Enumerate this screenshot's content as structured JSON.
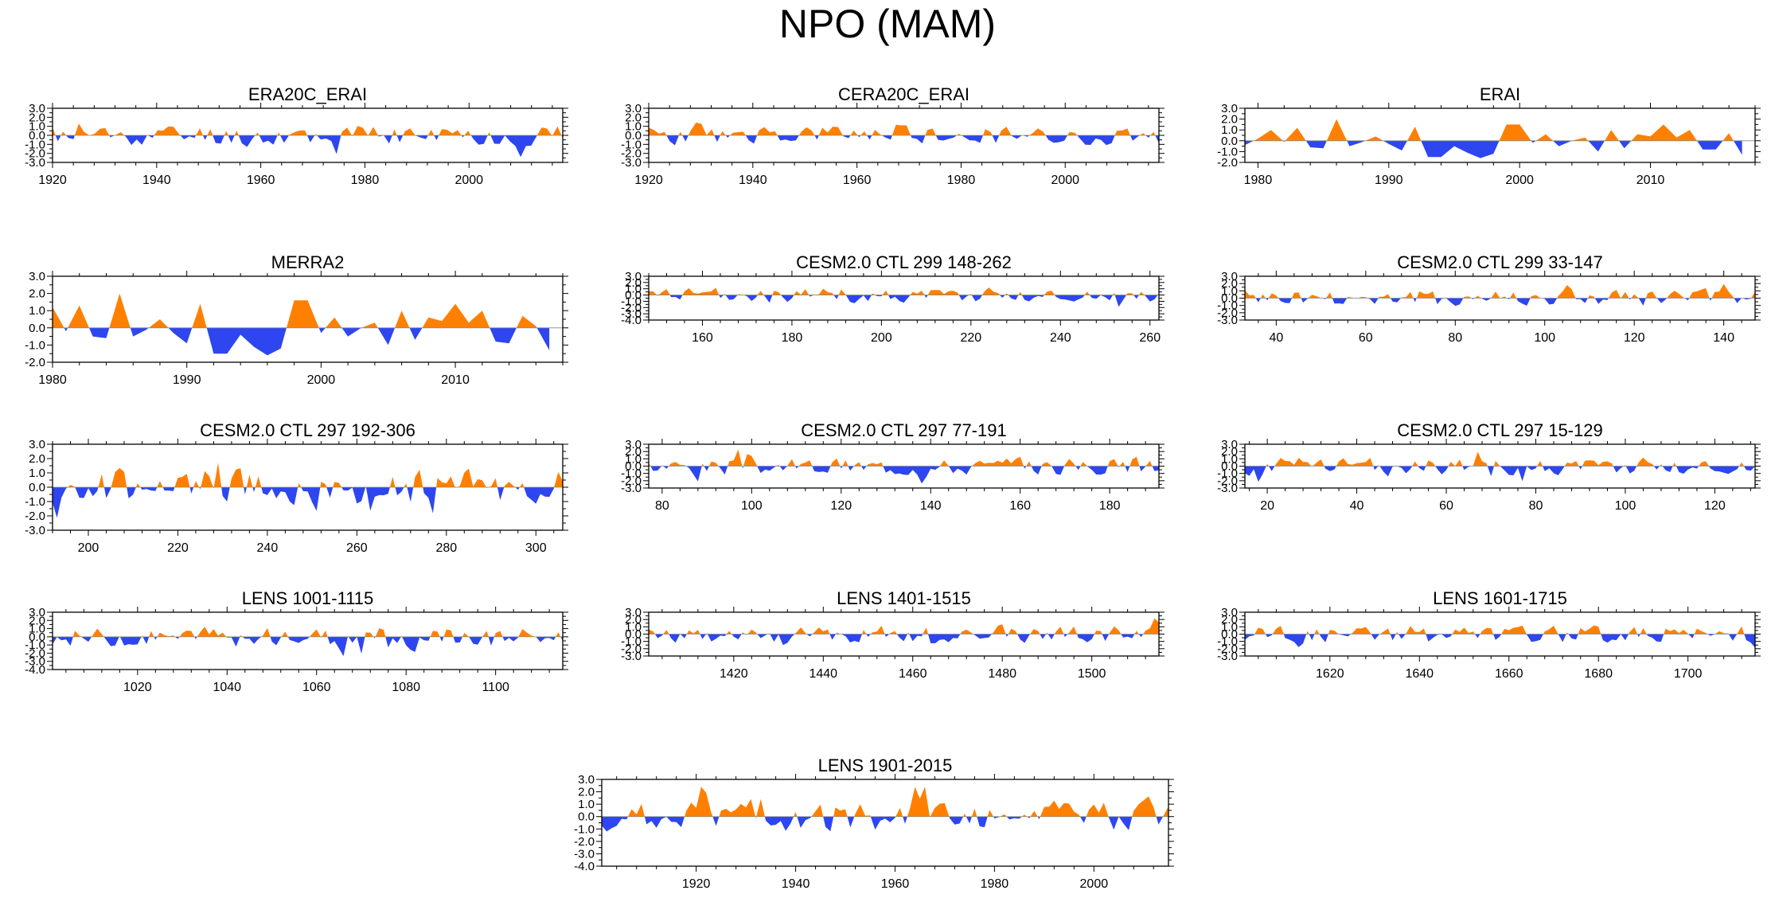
{
  "page": {
    "title": "NPO (MAM)"
  },
  "colors": {
    "positive": "#ff8000",
    "negative": "#2d46ef",
    "axis": "#000000"
  },
  "chart_data": [
    {
      "type": "area",
      "title": "ERA20C_ERAI",
      "xlim": [
        1920,
        2018
      ],
      "ylim": [
        -3.0,
        3.0
      ],
      "yticks": [
        3.0,
        2.0,
        1.0,
        0.0,
        -1.0,
        -2.0,
        -3.0
      ],
      "xticks": [
        1920,
        1940,
        1960,
        1980,
        2000
      ],
      "n": 98,
      "seed": 11,
      "amp": 1.0
    },
    {
      "type": "area",
      "title": "CERA20C_ERAI",
      "xlim": [
        1920,
        2018
      ],
      "ylim": [
        -3.0,
        3.0
      ],
      "yticks": [
        3.0,
        2.0,
        1.0,
        0.0,
        -1.0,
        -2.0,
        -3.0
      ],
      "xticks": [
        1920,
        1940,
        1960,
        1980,
        2000
      ],
      "n": 98,
      "seed": 23,
      "amp": 0.9
    },
    {
      "type": "area",
      "title": "ERAI",
      "xlim": [
        1979,
        2018
      ],
      "ylim": [
        -2.0,
        3.0
      ],
      "yticks": [
        3.0,
        2.0,
        1.0,
        0.0,
        -1.0,
        -2.0
      ],
      "xticks": [
        1980,
        1990,
        2000,
        2010
      ],
      "x": [
        1979,
        1980,
        1981,
        1982,
        1983,
        1984,
        1985,
        1986,
        1987,
        1988,
        1989,
        1990,
        1991,
        1992,
        1993,
        1994,
        1995,
        1996,
        1997,
        1998,
        1999,
        2000,
        2001,
        2002,
        2003,
        2004,
        2005,
        2006,
        2007,
        2008,
        2009,
        2010,
        2011,
        2012,
        2013,
        2014,
        2015,
        2016,
        2017
      ],
      "values": [
        -0.4,
        0.2,
        1.0,
        -0.1,
        1.2,
        -0.6,
        -0.7,
        2.0,
        -0.5,
        -0.1,
        0.4,
        -0.3,
        -0.9,
        1.3,
        -1.5,
        -1.5,
        -0.5,
        -1.1,
        -1.6,
        -1.2,
        1.5,
        1.5,
        -0.2,
        0.6,
        -0.5,
        0.0,
        0.3,
        -1.0,
        1.0,
        -0.7,
        0.6,
        0.4,
        1.5,
        0.3,
        1.0,
        -0.8,
        -0.8,
        0.7,
        -1.3
      ]
    },
    {
      "type": "area",
      "title": "MERRA2",
      "xlim": [
        1980,
        2018
      ],
      "ylim": [
        -2.0,
        3.0
      ],
      "yticks": [
        3.0,
        2.0,
        1.0,
        0.0,
        -1.0,
        -2.0
      ],
      "xticks": [
        1980,
        1990,
        2000,
        2010
      ],
      "x": [
        1980,
        1981,
        1982,
        1983,
        1984,
        1985,
        1986,
        1987,
        1988,
        1989,
        1990,
        1991,
        1992,
        1993,
        1994,
        1995,
        1996,
        1997,
        1998,
        1999,
        2000,
        2001,
        2002,
        2003,
        2004,
        2005,
        2006,
        2007,
        2008,
        2009,
        2010,
        2011,
        2012,
        2013,
        2014,
        2015,
        2016,
        2017
      ],
      "values": [
        1.2,
        -0.2,
        1.3,
        -0.5,
        -0.6,
        2.0,
        -0.5,
        -0.1,
        0.5,
        -0.3,
        -0.9,
        1.4,
        -1.5,
        -1.5,
        -0.4,
        -1.1,
        -1.6,
        -1.2,
        1.6,
        1.6,
        -0.3,
        0.6,
        -0.5,
        0.0,
        0.3,
        -1.0,
        1.0,
        -0.7,
        0.6,
        0.4,
        1.4,
        0.3,
        1.0,
        -0.8,
        -0.9,
        0.7,
        0.1,
        -1.3
      ]
    },
    {
      "type": "area",
      "title": "CESM2.0 CTL 299 148-262",
      "xlim": [
        148,
        262
      ],
      "ylim": [
        -4.0,
        3.0
      ],
      "yticks": [
        3.0,
        2.0,
        1.0,
        0.0,
        -1.0,
        -2.0,
        -3.0,
        -4.0
      ],
      "xticks": [
        160,
        180,
        200,
        220,
        240,
        260
      ],
      "n": 115,
      "seed": 37,
      "amp": 1.0
    },
    {
      "type": "area",
      "title": "CESM2.0 CTL 299 33-147",
      "xlim": [
        33,
        147
      ],
      "ylim": [
        -3.0,
        3.0
      ],
      "yticks": [
        3.0,
        2.0,
        1.0,
        0.0,
        -1.0,
        -2.0,
        -3.0
      ],
      "xticks": [
        40,
        60,
        80,
        100,
        120,
        140
      ],
      "n": 115,
      "seed": 41,
      "amp": 1.0
    },
    {
      "type": "area",
      "title": "CESM2.0 CTL 297 192-306",
      "xlim": [
        192,
        306
      ],
      "ylim": [
        -3.0,
        3.0
      ],
      "yticks": [
        3.0,
        2.0,
        1.0,
        0.0,
        -1.0,
        -2.0,
        -3.0
      ],
      "xticks": [
        200,
        220,
        240,
        260,
        280,
        300
      ],
      "n": 115,
      "seed": 53,
      "amp": 1.0
    },
    {
      "type": "area",
      "title": "CESM2.0 CTL 297 77-191",
      "xlim": [
        77,
        191
      ],
      "ylim": [
        -3.0,
        3.0
      ],
      "yticks": [
        3.0,
        2.0,
        1.0,
        0.0,
        -1.0,
        -2.0,
        -3.0
      ],
      "xticks": [
        80,
        100,
        120,
        140,
        160,
        180
      ],
      "n": 115,
      "seed": 67,
      "amp": 1.0
    },
    {
      "type": "area",
      "title": "CESM2.0 CTL 297 15-129",
      "xlim": [
        15,
        129
      ],
      "ylim": [
        -3.0,
        3.0
      ],
      "yticks": [
        3.0,
        2.0,
        1.0,
        0.0,
        -1.0,
        -2.0,
        -3.0
      ],
      "xticks": [
        20,
        40,
        60,
        80,
        100,
        120
      ],
      "n": 115,
      "seed": 71,
      "amp": 1.0
    },
    {
      "type": "area",
      "title": "LENS 1001-1115",
      "xlim": [
        1001,
        1115
      ],
      "ylim": [
        -4.0,
        3.0
      ],
      "yticks": [
        3.0,
        2.0,
        1.0,
        0.0,
        -1.0,
        -2.0,
        -3.0,
        -4.0
      ],
      "xticks": [
        1020,
        1040,
        1060,
        1080,
        1100
      ],
      "n": 115,
      "seed": 83,
      "amp": 1.0
    },
    {
      "type": "area",
      "title": "LENS 1401-1515",
      "xlim": [
        1401,
        1515
      ],
      "ylim": [
        -3.0,
        3.0
      ],
      "yticks": [
        3.0,
        2.0,
        1.0,
        0.0,
        -1.0,
        -2.0,
        -3.0
      ],
      "xticks": [
        1420,
        1440,
        1460,
        1480,
        1500
      ],
      "n": 115,
      "seed": 97,
      "amp": 1.0
    },
    {
      "type": "area",
      "title": "LENS 1601-1715",
      "xlim": [
        1601,
        1715
      ],
      "ylim": [
        -3.0,
        3.0
      ],
      "yticks": [
        3.0,
        2.0,
        1.0,
        0.0,
        -1.0,
        -2.0,
        -3.0
      ],
      "xticks": [
        1620,
        1640,
        1660,
        1680,
        1700
      ],
      "n": 115,
      "seed": 101,
      "amp": 1.0
    },
    {
      "type": "area",
      "title": "LENS 1901-2015",
      "xlim": [
        1901,
        2015
      ],
      "ylim": [
        -4.0,
        3.0
      ],
      "yticks": [
        3.0,
        2.0,
        1.0,
        0.0,
        -1.0,
        -2.0,
        -3.0,
        -4.0
      ],
      "xticks": [
        1920,
        1940,
        1960,
        1980,
        2000
      ],
      "n": 115,
      "seed": 113,
      "amp": 1.0
    }
  ]
}
